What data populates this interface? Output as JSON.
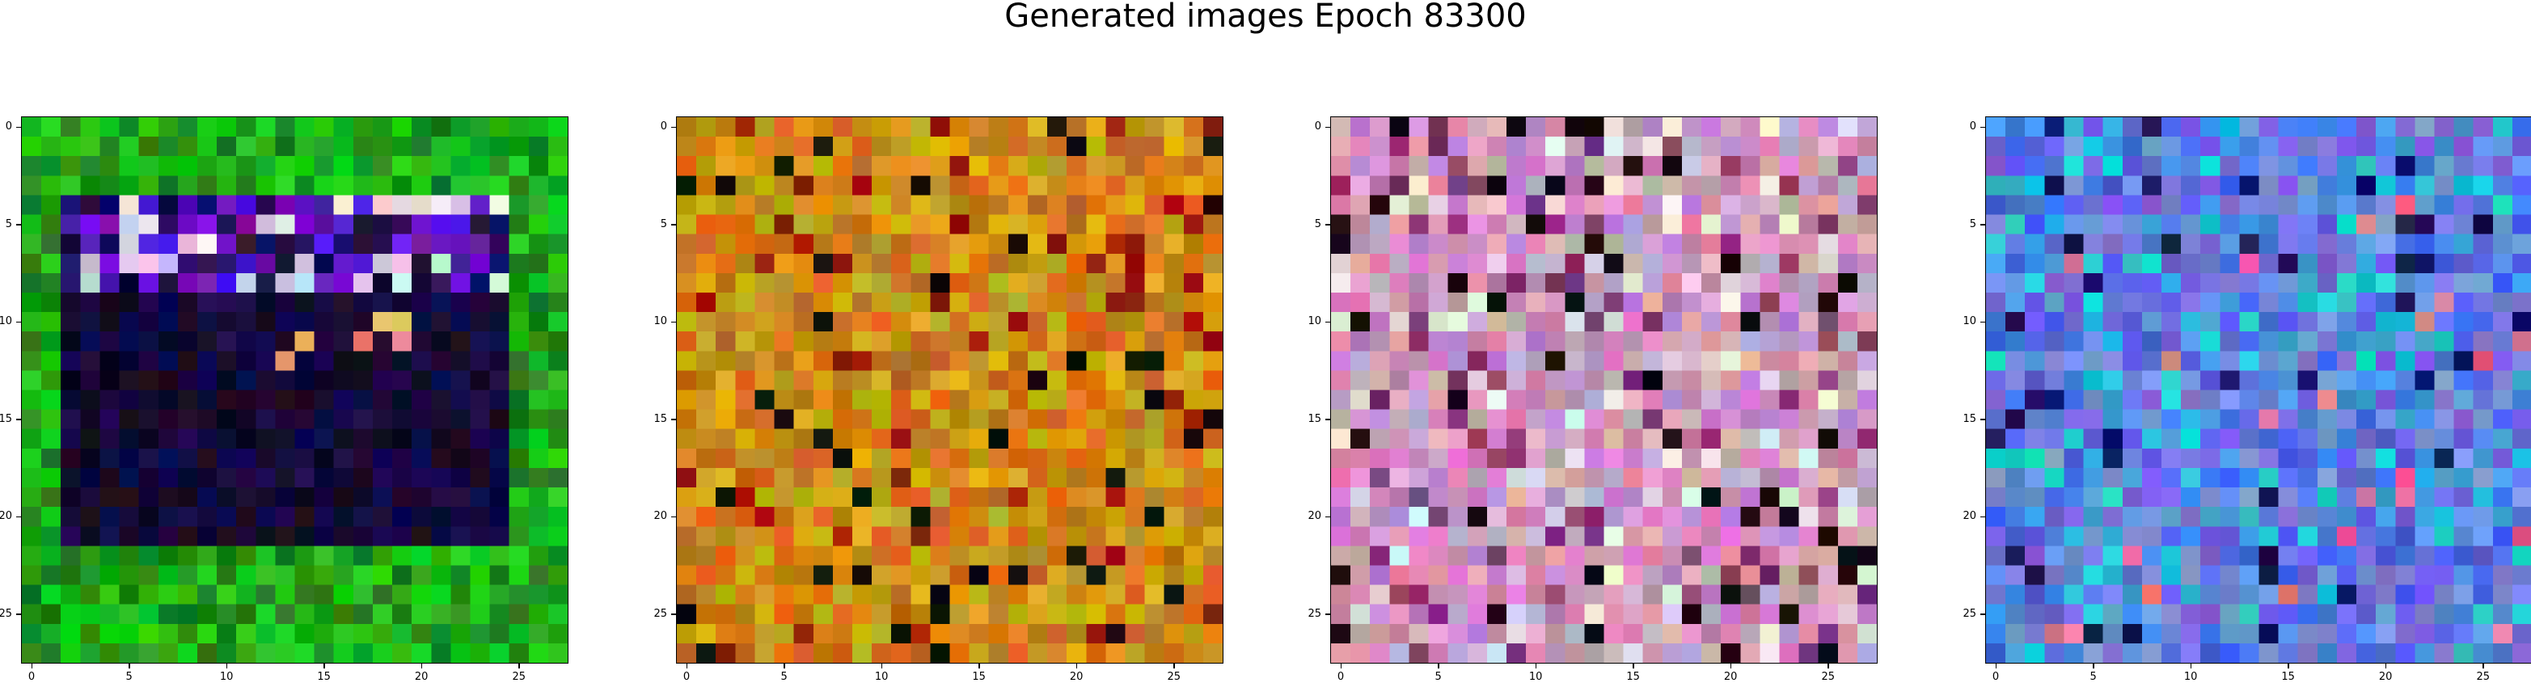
{
  "figure": {
    "title": "Generated images Epoch 83300"
  },
  "axes": {
    "x_ticks": [
      "0",
      "5",
      "10",
      "15",
      "20",
      "25"
    ],
    "y_ticks": [
      "0",
      "5",
      "10",
      "15",
      "20",
      "25"
    ],
    "grid_size": 28
  },
  "panels": [
    {
      "name": "image-panel-1",
      "palette": "green-frame"
    },
    {
      "name": "image-panel-2",
      "palette": "orange-noise"
    },
    {
      "name": "image-panel-3",
      "palette": "pink-noise"
    },
    {
      "name": "image-panel-4",
      "palette": "blue-noise"
    }
  ]
}
